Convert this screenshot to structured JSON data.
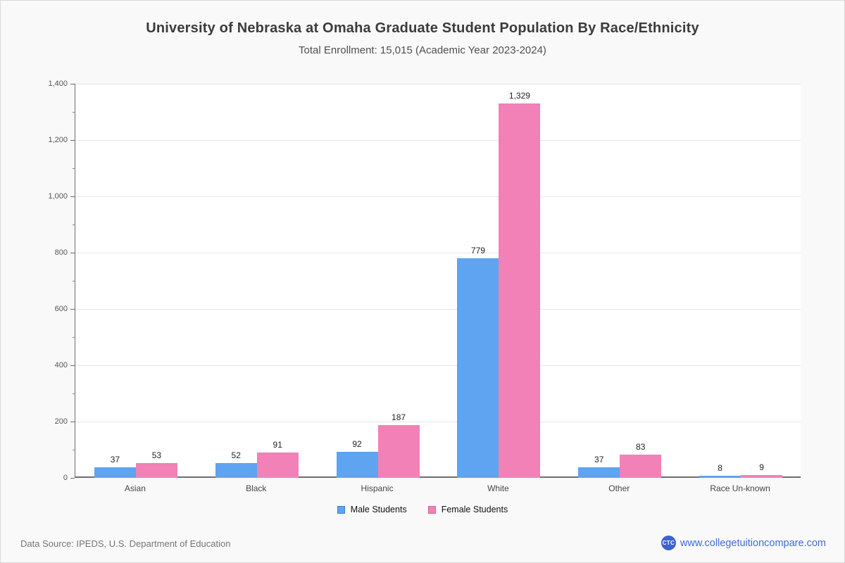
{
  "page": {
    "title": "University of Nebraska at Omaha Graduate Student Population By Race/Ethnicity",
    "subtitle": "Total Enrollment: 15,015 (Academic Year 2023-2024)",
    "footer": {
      "source": "Data Source: IPEDS, U.S. Department of Education",
      "logo_text": "CTC",
      "website": "www.collegetuitioncompare.com"
    }
  },
  "chart_data": {
    "type": "bar",
    "title": "University of Nebraska at Omaha Graduate Student Population By Race/Ethnicity",
    "subtitle": "Total Enrollment: 15,015 (Academic Year 2023-2024)",
    "categories": [
      "Asian",
      "Black",
      "Hispanic",
      "White",
      "Other",
      "Race Un-known"
    ],
    "series": [
      {
        "name": "Male Students",
        "color": "#5ea4f0",
        "border_color": "#3f7fc4",
        "values": [
          37,
          52,
          92,
          779,
          37,
          8
        ]
      },
      {
        "name": "Female Students",
        "color": "#f181b6",
        "border_color": "#cf5f97",
        "values": [
          53,
          91,
          187,
          1329,
          83,
          9
        ]
      }
    ],
    "ylim": [
      0,
      1400
    ],
    "ytick_step": 200,
    "yminor_step": 100,
    "yticks": [
      0,
      200,
      400,
      600,
      800,
      1000,
      1200,
      1400
    ],
    "grid": "horizontal-major",
    "legend_position": "bottom-center",
    "value_labels": true,
    "plot_background": "#ffffff",
    "page_background": "#f9f9f9"
  }
}
